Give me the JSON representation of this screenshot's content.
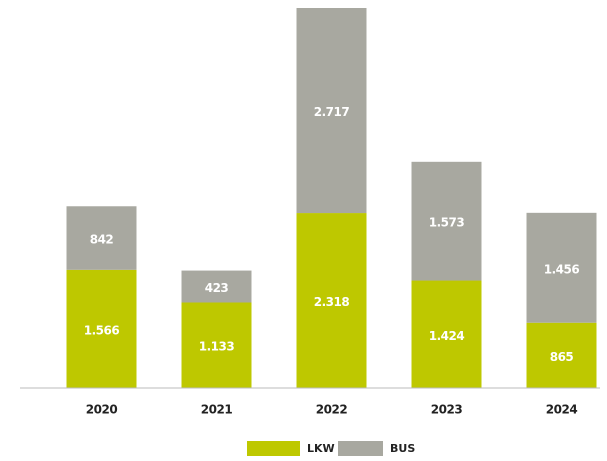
{
  "chart_data": {
    "type": "stacked_bar",
    "categories": [
      "2020",
      "2021",
      "2022",
      "2023",
      "2024"
    ],
    "series": [
      {
        "name": "LKW",
        "color": "#bec800",
        "values": [
          1566,
          1133,
          2318,
          1424,
          865
        ],
        "value_labels": [
          "1.566",
          "1.133",
          "2.318",
          "1.424",
          "865"
        ]
      },
      {
        "name": "BUS",
        "color": "#a8a8a0",
        "values": [
          842,
          423,
          2717,
          1573,
          1456
        ],
        "value_labels": [
          "842",
          "423",
          "2.717",
          "1.573",
          "1.456"
        ]
      }
    ],
    "legend": "bottom"
  }
}
